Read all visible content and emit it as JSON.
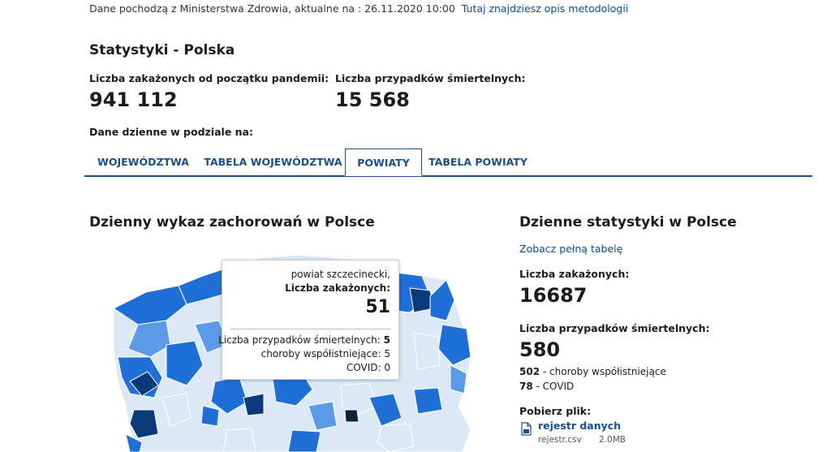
{
  "header": {
    "source_text": "Dane pochodzą z Ministerstwa Zdrowia, aktualne na : 26.11.2020 10:00",
    "methodology_link": "Tutaj znajdziesz opis metodologii"
  },
  "stats": {
    "title": "Statystyki - Polska",
    "total_infected_label": "Liczba zakażonych od początku pandemii:",
    "total_infected_value": "941 112",
    "total_deaths_label": "Liczba przypadków śmiertelnych:",
    "total_deaths_value": "15 568",
    "daily_split_label": "Dane dzienne w podziale na:"
  },
  "tabs": [
    {
      "label": "WOJEWÓDZTWA",
      "active": false
    },
    {
      "label": "TABELA WOJEWÓDZTWA",
      "active": false
    },
    {
      "label": "POWIATY",
      "active": true
    },
    {
      "label": "TABELA POWIATY",
      "active": false
    }
  ],
  "map_section": {
    "title": "Dzienny wykaz zachorowań w Polsce"
  },
  "tooltip": {
    "county": "powiat szczecinecki,",
    "infected_label": "Liczba zakażonych:",
    "infected_value": "51",
    "deaths_line_label": "Liczba przypadków śmiertelnych:",
    "deaths_line_value": "5",
    "comorbid_label": "choroby współistniejące:",
    "comorbid_value": "5",
    "covid_label": "COVID:",
    "covid_value": "0"
  },
  "daily": {
    "title": "Dzienne statystyki w Polsce",
    "full_table_link": "Zobacz pełną tabelę",
    "infected_label": "Liczba zakażonych:",
    "infected_value": "16687",
    "deaths_label": "Liczba przypadków śmiertelnych:",
    "deaths_value": "580",
    "comorbid_count": "502",
    "comorbid_text": "- choroby współistniejące",
    "covid_count": "78",
    "covid_text": "- COVID",
    "download_label": "Pobierz plik:",
    "file_link": "rejestr danych",
    "file_name": "rejestr.csv",
    "file_size": "2.0MB"
  },
  "colors": {
    "accent": "#1b4f8a",
    "link": "#0052a5",
    "map_light": "#dbe9f7",
    "map_mid": "#1f6fd6",
    "map_dark": "#0b3a7a",
    "map_darkest": "#0a2340"
  },
  "icons": {
    "file": "file-icon"
  }
}
